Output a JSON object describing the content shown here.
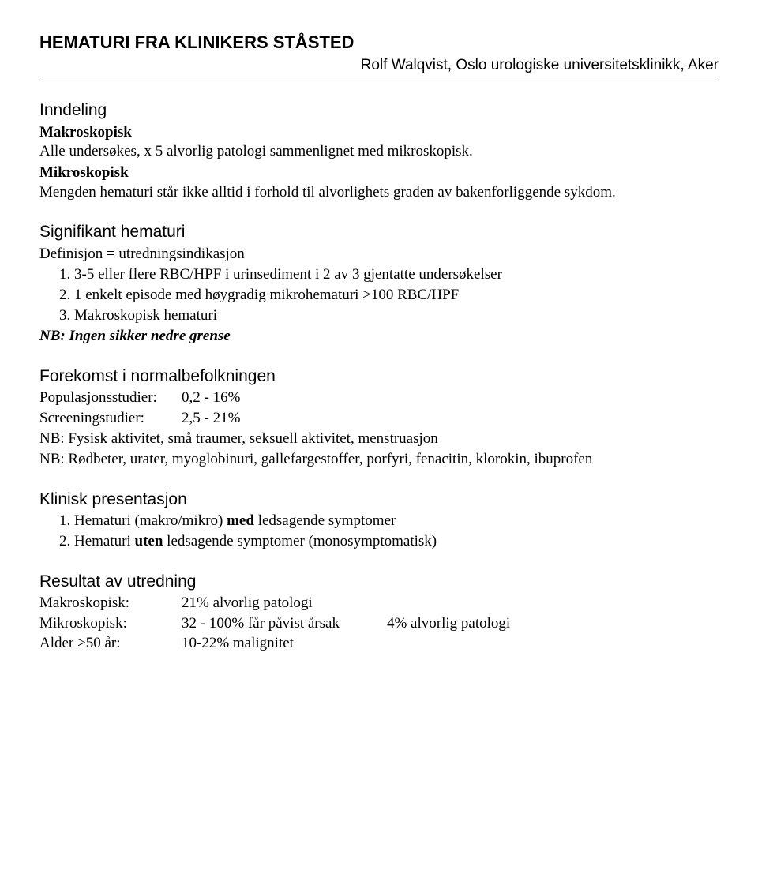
{
  "title": "HEMATURI FRA KLINIKERS STÅSTED",
  "author": "Rolf Walqvist, Oslo urologiske universitetsklinikk, Aker",
  "s1": {
    "heading": "Inndeling",
    "makro_label": "Makroskopisk",
    "makro_text": "Alle undersøkes, x 5 alvorlig patologi sammenlignet med mikroskopisk.",
    "mikro_label": "Mikroskopisk",
    "mikro_text": "Mengden hematuri står ikke alltid i forhold til alvorlighets graden av bakenforliggende sykdom."
  },
  "s2": {
    "heading": "Signifikant hematuri",
    "def": "Definisjon = utredningsindikasjon",
    "item1": "3-5 eller flere RBC/HPF i urinsediment i 2 av 3 gjentatte undersøkelser",
    "item2": "1 enkelt episode med høygradig mikrohematuri >100 RBC/HPF",
    "item3": "Makroskopisk hematuri",
    "note": "NB: Ingen sikker nedre grense"
  },
  "s3": {
    "heading": "Forekomst i normalbefolkningen",
    "pop_label": "Populasjonsstudier:",
    "pop_value": "0,2 - 16%",
    "scr_label": "Screeningstudier:",
    "scr_value": "2,5 - 21%",
    "nb1": "NB: Fysisk aktivitet, små traumer, seksuell aktivitet, menstruasjon",
    "nb2": "NB: Rødbeter, urater, myoglobinuri, gallefargestoffer, porfyri, fenacitin, klorokin, ibuprofen"
  },
  "s4": {
    "heading": "Klinisk presentasjon",
    "i1_pre": "Hematuri (makro/mikro) ",
    "i1_bold": "med",
    "i1_post": " ledsagende symptomer",
    "i2_pre": "Hematuri ",
    "i2_bold": "uten",
    "i2_post": " ledsagende symptomer (monosymptomatisk)"
  },
  "s5": {
    "heading": "Resultat av utredning",
    "r1_label": "Makroskopisk:",
    "r1_value": "21% alvorlig patologi",
    "r2_label": "Mikroskopisk:",
    "r2_value": "32 - 100% får påvist årsak",
    "r2_extra": "4% alvorlig patologi",
    "r3_label": "Alder >50 år:",
    "r3_value": "10-22% malignitet"
  }
}
